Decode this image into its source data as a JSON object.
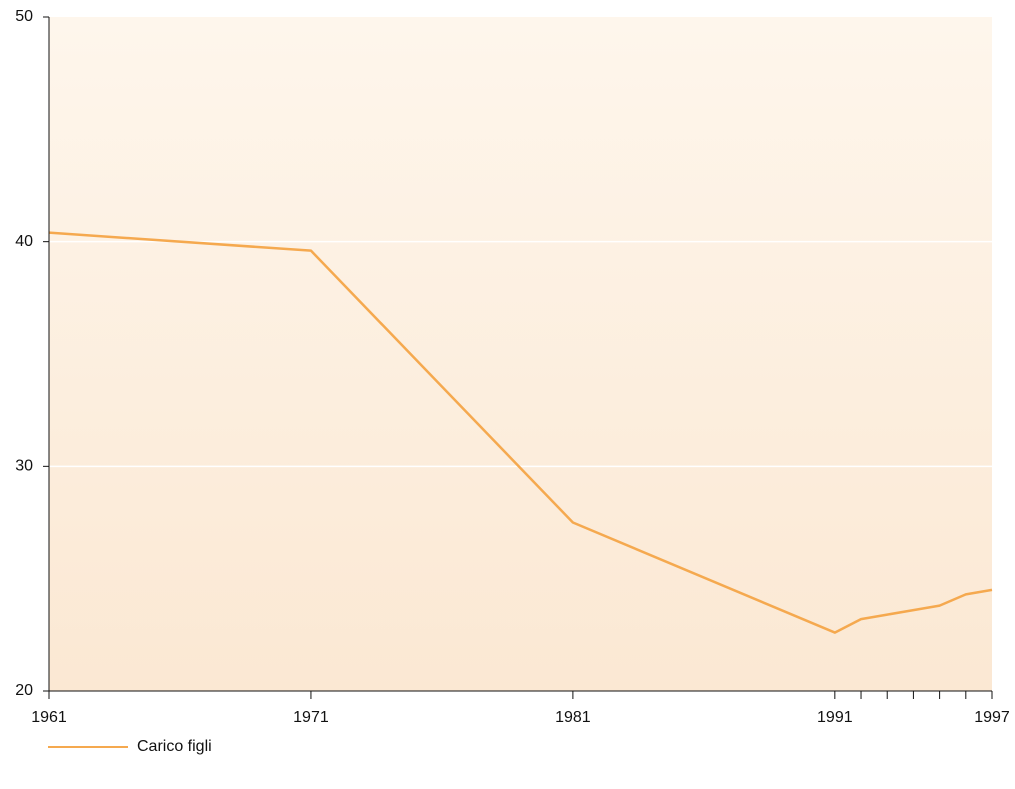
{
  "chart_data": {
    "type": "line",
    "x": [
      1961,
      1971,
      1981,
      1991,
      1992,
      1993,
      1994,
      1995,
      1996,
      1997
    ],
    "series": [
      {
        "name": "Carico figli",
        "color": "#f5a94f",
        "values": [
          40.4,
          39.6,
          27.5,
          22.6,
          23.2,
          23.4,
          23.6,
          23.8,
          24.3,
          24.5
        ]
      }
    ],
    "xlim": [
      1961,
      1997
    ],
    "xticks": [
      1961,
      1971,
      1981,
      1991,
      1997
    ],
    "ylim": [
      20,
      50
    ],
    "yticks": [
      20,
      30,
      40,
      50
    ],
    "grid": true
  }
}
